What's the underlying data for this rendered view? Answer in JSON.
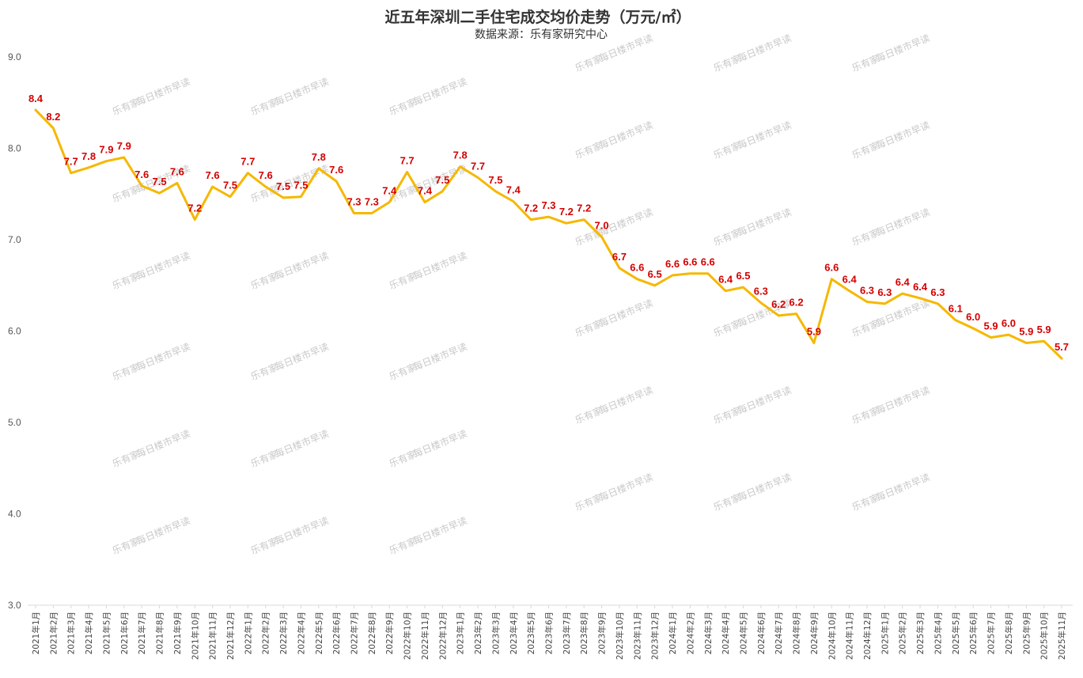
{
  "chart_data": {
    "type": "line",
    "title": "近五年深圳二手住宅成交均价走势（万元/㎡）",
    "subtitle": "数据来源：乐有家研究中心",
    "ylim": [
      3.0,
      9.0
    ],
    "yticks": [
      "3.0",
      "4.0",
      "5.0",
      "6.0",
      "7.0",
      "8.0",
      "9.0"
    ],
    "grid": false,
    "line_color": "#f5b800",
    "label_color": "#d40000",
    "categories": [
      "2021年1月",
      "2021年2月",
      "2021年3月",
      "2021年4月",
      "2021年5月",
      "2021年6月",
      "2021年7月",
      "2021年8月",
      "2021年9月",
      "2021年10月",
      "2021年11月",
      "2021年12月",
      "2022年1月",
      "2022年2月",
      "2022年3月",
      "2022年4月",
      "2022年5月",
      "2022年6月",
      "2022年7月",
      "2022年8月",
      "2022年9月",
      "2022年10月",
      "2022年11月",
      "2022年12月",
      "2023年1月",
      "2023年2月",
      "2023年3月",
      "2023年4月",
      "2023年5月",
      "2023年6月",
      "2023年7月",
      "2023年8月",
      "2023年9月",
      "2023年10月",
      "2023年11月",
      "2023年12月",
      "2024年1月",
      "2024年2月",
      "2024年3月",
      "2024年4月",
      "2024年5月",
      "2024年6月",
      "2024年7月",
      "2024年8月",
      "2024年9月",
      "2024年10月",
      "2024年11月",
      "2024年12月",
      "2025年1月",
      "2025年2月",
      "2025年3月",
      "2025年4月",
      "2025年5月",
      "2025年6月",
      "2025年7月",
      "2025年8月",
      "2025年9月",
      "2025年10月",
      "2025年11月"
    ],
    "values": [
      8.42,
      8.22,
      7.73,
      7.79,
      7.86,
      7.9,
      7.59,
      7.51,
      7.62,
      7.22,
      7.58,
      7.47,
      7.73,
      7.58,
      7.46,
      7.47,
      7.78,
      7.64,
      7.29,
      7.29,
      7.41,
      7.74,
      7.41,
      7.53,
      7.8,
      7.68,
      7.53,
      7.42,
      7.22,
      7.25,
      7.18,
      7.22,
      7.03,
      6.69,
      6.57,
      6.5,
      6.61,
      6.63,
      6.63,
      6.44,
      6.48,
      6.31,
      6.17,
      6.19,
      5.87,
      6.57,
      6.44,
      6.32,
      6.3,
      6.41,
      6.36,
      6.3,
      6.12,
      6.03,
      5.93,
      5.96,
      5.87,
      5.89,
      5.7
    ],
    "data_labels": [
      "8.4",
      "8.2",
      "7.7",
      "7.8",
      "7.9",
      "7.9",
      "7.6",
      "7.5",
      "7.6",
      "7.2",
      "7.6",
      "7.5",
      "7.7",
      "7.6",
      "7.5",
      "7.5",
      "7.8",
      "7.6",
      "7.3",
      "7.3",
      "7.4",
      "7.7",
      "7.4",
      "7.5",
      "7.8",
      "7.7",
      "7.5",
      "7.4",
      "7.2",
      "7.3",
      "7.2",
      "7.2",
      "7.0",
      "6.7",
      "6.6",
      "6.5",
      "6.6",
      "6.6",
      "6.6",
      "6.4",
      "6.5",
      "6.3",
      "6.2",
      "6.2",
      "5.9",
      "6.6",
      "6.4",
      "6.3",
      "6.3",
      "6.4",
      "6.4",
      "6.3",
      "6.1",
      "6.0",
      "5.9",
      "6.0",
      "5.9",
      "5.9",
      "5.7"
    ]
  },
  "watermark": {
    "logo_text": "乐有家",
    "text": "每日楼市早读"
  }
}
